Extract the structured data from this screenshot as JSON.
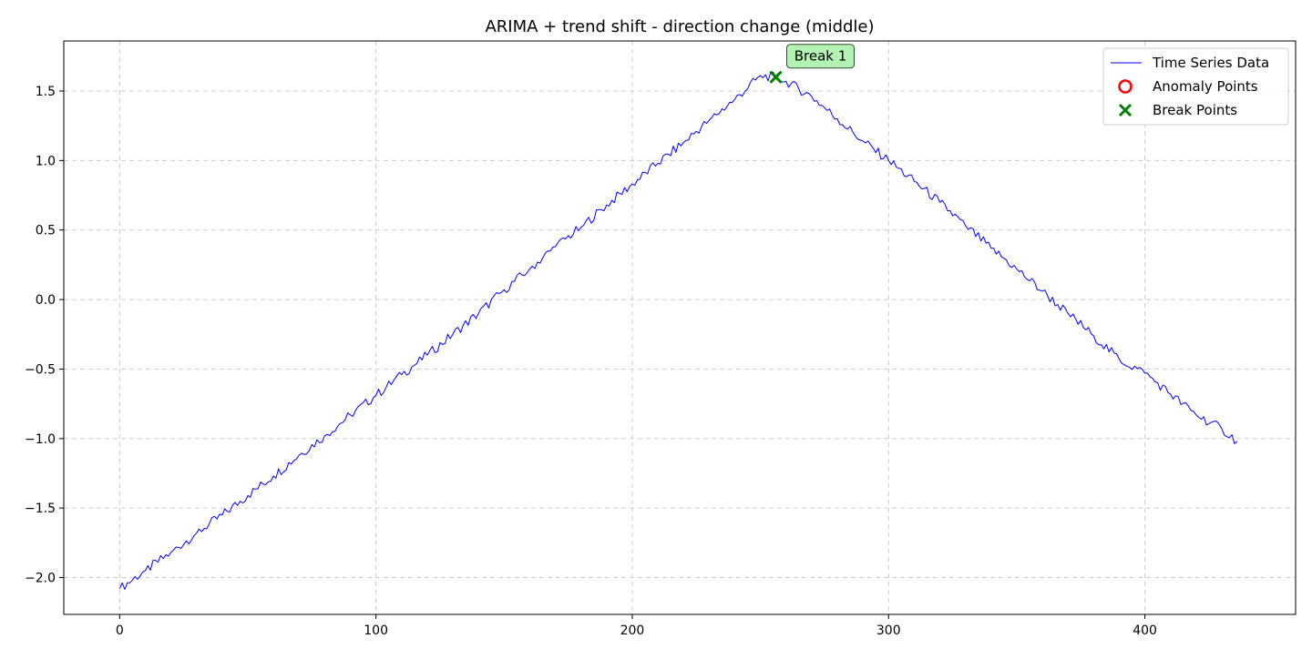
{
  "chart_data": {
    "type": "line",
    "title": "ARIMA + trend shift - direction change (middle)",
    "xlabel": "",
    "ylabel": "",
    "xlim": [
      -21.8,
      458.8
    ],
    "ylim": [
      -2.265,
      1.86
    ],
    "xticks": [
      0,
      100,
      200,
      300,
      400
    ],
    "yticks": [
      -2.0,
      -1.5,
      -1.0,
      -0.5,
      0.0,
      0.5,
      1.0,
      1.5
    ],
    "xtick_labels": [
      "0",
      "100",
      "200",
      "300",
      "400"
    ],
    "ytick_labels": [
      "−2.0",
      "−1.5",
      "−1.0",
      "−0.5",
      "0.0",
      "0.5",
      "1.0",
      "1.5"
    ],
    "grid": true,
    "legend_position": "top-right",
    "legend": [
      {
        "label": "Time Series Data",
        "marker": "line",
        "color": "#0000ff"
      },
      {
        "label": "Anomaly Points",
        "marker": "circle",
        "color": "#ff0000"
      },
      {
        "label": "Break Points",
        "marker": "x",
        "color": "#008000"
      }
    ],
    "series": [
      {
        "name": "Time Series Data",
        "color": "#0000ff",
        "x": [
          0,
          10,
          20,
          30,
          40,
          50,
          60,
          70,
          80,
          90,
          100,
          110,
          120,
          130,
          140,
          150,
          160,
          170,
          180,
          190,
          200,
          210,
          220,
          230,
          240,
          250,
          256,
          260,
          270,
          280,
          290,
          300,
          310,
          320,
          330,
          340,
          350,
          360,
          370,
          380,
          390,
          400,
          410,
          420,
          430,
          436
        ],
        "y": [
          -2.08,
          -1.95,
          -1.82,
          -1.68,
          -1.55,
          -1.41,
          -1.27,
          -1.12,
          -0.98,
          -0.83,
          -0.69,
          -0.54,
          -0.4,
          -0.25,
          -0.1,
          0.07,
          0.22,
          0.38,
          0.52,
          0.68,
          0.83,
          0.98,
          1.13,
          1.29,
          1.44,
          1.61,
          1.6,
          1.57,
          1.46,
          1.3,
          1.14,
          1.0,
          0.85,
          0.7,
          0.53,
          0.37,
          0.22,
          0.06,
          -0.1,
          -0.26,
          -0.43,
          -0.53,
          -0.68,
          -0.83,
          -0.93,
          -1.02
        ]
      }
    ],
    "anomaly_points": [],
    "break_points": [
      {
        "x": 256,
        "y": 1.6,
        "label": "Break 1"
      }
    ]
  }
}
